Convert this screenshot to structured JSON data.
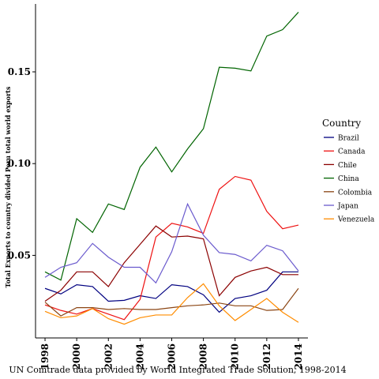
{
  "chart_data": {
    "type": "line",
    "title": "",
    "xlabel": "UN Comtrade data provided by World Integrated Trade Solution, 1998-2014",
    "ylabel": "Total Exports to country divided Peru total world exports",
    "x": [
      1998,
      1999,
      2000,
      2001,
      2002,
      2003,
      2004,
      2005,
      2006,
      2007,
      2008,
      2009,
      2010,
      2011,
      2012,
      2013,
      2014
    ],
    "xticks": [
      "1998",
      "2000",
      "2002",
      "2004",
      "2006",
      "2008",
      "2010",
      "2012",
      "2014"
    ],
    "yticks": [
      "0.05",
      "0.10",
      "0.15"
    ],
    "ylim": [
      0.005,
      0.187
    ],
    "xlim": [
      1997.4,
      2014.6
    ],
    "grid": false,
    "legend": {
      "title": "Country",
      "placement": "right"
    },
    "series": [
      {
        "name": "Brazil",
        "color": "#000080",
        "values": [
          0.032,
          0.029,
          0.034,
          0.033,
          0.025,
          0.0255,
          0.028,
          0.0265,
          0.034,
          0.033,
          0.0285,
          0.019,
          0.0265,
          0.028,
          0.031,
          0.041,
          0.041
        ]
      },
      {
        "name": "Canada",
        "color": "#ee1111",
        "values": [
          0.023,
          0.02,
          0.018,
          0.021,
          0.018,
          0.015,
          0.026,
          0.06,
          0.0675,
          0.0655,
          0.062,
          0.086,
          0.093,
          0.091,
          0.074,
          0.0645,
          0.0665
        ]
      },
      {
        "name": "Chile",
        "color": "#8b0000",
        "values": [
          0.025,
          0.031,
          0.041,
          0.041,
          0.033,
          0.046,
          0.056,
          0.066,
          0.06,
          0.0605,
          0.059,
          0.028,
          0.038,
          0.0415,
          0.0435,
          0.0395,
          0.0395
        ]
      },
      {
        "name": "China",
        "color": "#006400",
        "values": [
          0.041,
          0.0365,
          0.07,
          0.0625,
          0.078,
          0.075,
          0.098,
          0.109,
          0.0955,
          0.108,
          0.119,
          0.1525,
          0.152,
          0.1505,
          0.1695,
          0.173,
          0.1825
        ]
      },
      {
        "name": "Colombia",
        "color": "#8b4513",
        "values": [
          0.0245,
          0.017,
          0.0215,
          0.0215,
          0.0205,
          0.021,
          0.0205,
          0.0205,
          0.0215,
          0.0225,
          0.023,
          0.024,
          0.0225,
          0.0225,
          0.02,
          0.0205,
          0.032
        ]
      },
      {
        "name": "Japan",
        "color": "#6a5acd",
        "values": [
          0.038,
          0.0435,
          0.046,
          0.0565,
          0.049,
          0.0435,
          0.0435,
          0.035,
          0.052,
          0.078,
          0.061,
          0.0515,
          0.0505,
          0.047,
          0.0555,
          0.0525,
          0.0415
        ]
      },
      {
        "name": "Venezuela",
        "color": "#ff8c00",
        "values": [
          0.0195,
          0.016,
          0.017,
          0.021,
          0.0155,
          0.0125,
          0.016,
          0.0175,
          0.0175,
          0.027,
          0.0345,
          0.0225,
          0.0145,
          0.0205,
          0.0265,
          0.019,
          0.0135
        ]
      }
    ]
  }
}
